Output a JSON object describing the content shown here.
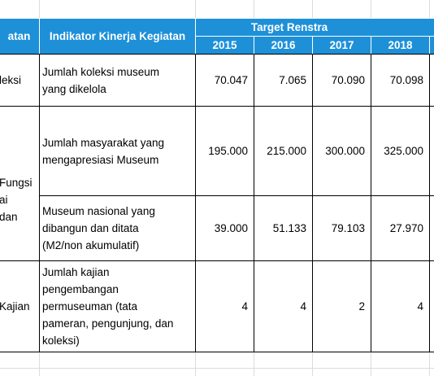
{
  "table": {
    "header": {
      "kegiatan": "atan",
      "indikator": "Indikator Kinerja Kegiatan",
      "group": "Target Renstra",
      "years": [
        2015,
        2016,
        2017,
        2018
      ]
    },
    "kegiatan": [
      {
        "lines": [
          "leksi"
        ]
      },
      {
        "lines": [
          "Fungsi",
          "ai",
          "dan"
        ]
      },
      {
        "lines": [
          "Kajian"
        ]
      }
    ],
    "rows": [
      {
        "indikator": [
          "Jumlah koleksi museum",
          "yang dikelola"
        ],
        "values": [
          "70.047",
          "7.065",
          "70.090",
          "70.098"
        ]
      },
      {
        "indikator": [
          "Jumlah masyarakat yang",
          "mengapresiasi Museum"
        ],
        "values": [
          "195.000",
          "215.000",
          "300.000",
          "325.000"
        ]
      },
      {
        "indikator": [
          "Museum nasional yang",
          "dibangun dan ditata",
          "(M2/non akumulatif)"
        ],
        "values": [
          "39.000",
          "51.133",
          "79.103",
          "27.970"
        ]
      },
      {
        "indikator": [
          "Jumlah kajian",
          "pengembangan",
          "permuseuman (tata",
          "pameran, pengunjung, dan",
          "koleksi)"
        ],
        "values": [
          "4",
          "4",
          "2",
          "4"
        ]
      }
    ]
  }
}
